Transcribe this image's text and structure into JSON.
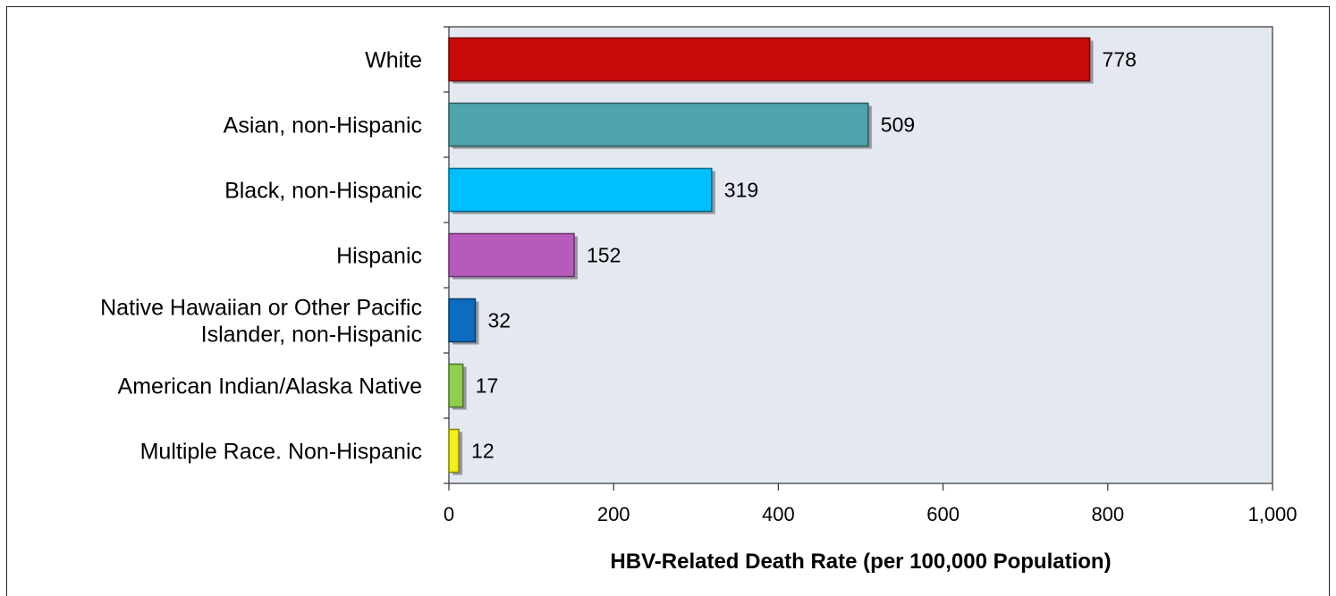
{
  "chart_data": {
    "type": "bar",
    "orientation": "horizontal",
    "categories": [
      [
        "White"
      ],
      [
        "Asian, non-Hispanic"
      ],
      [
        "Black, non-Hispanic"
      ],
      [
        "Hispanic"
      ],
      [
        "Native Hawaiian or Other Pacific",
        "Islander, non-Hispanic"
      ],
      [
        "American Indian/Alaska Native"
      ],
      [
        "Multiple Race. Non-Hispanic"
      ]
    ],
    "values": [
      778,
      509,
      319,
      152,
      32,
      17,
      12
    ],
    "value_labels": [
      "778",
      "509",
      "319",
      "152",
      "32",
      "17",
      "12"
    ],
    "colors": [
      "#c90a0a",
      "#4fa3aa",
      "#00bfff",
      "#b75bbb",
      "#0c6cc0",
      "#8fcf4f",
      "#f2ef1a"
    ],
    "xlim": [
      0,
      1000
    ],
    "xticks": [
      0,
      200,
      400,
      600,
      800,
      1000
    ],
    "xtick_labels": [
      "0",
      "200",
      "400",
      "600",
      "800",
      "1,000"
    ],
    "xlabel": "HBV-Related Death Rate (per 100,000 Population)",
    "ylabel": "",
    "title": "",
    "plot_background": "#e4e9f1",
    "grid": false,
    "legend": "none"
  }
}
